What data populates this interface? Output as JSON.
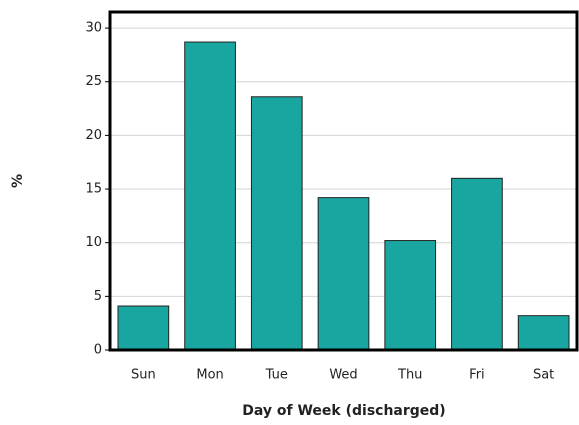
{
  "chart_data": {
    "type": "bar",
    "x_label": "Day of Week (discharged)",
    "y_label": "%",
    "categories": [
      "Sun",
      "Mon",
      "Tue",
      "Wed",
      "Thu",
      "Fri",
      "Sat"
    ],
    "values": [
      4.1,
      28.7,
      23.6,
      14.2,
      10.2,
      16.0,
      3.2
    ],
    "color": "#1aa6a0",
    "ylim": [
      0,
      31.5
    ],
    "yticks": [
      0,
      5,
      10,
      15,
      20,
      25,
      30
    ],
    "grid": true
  }
}
